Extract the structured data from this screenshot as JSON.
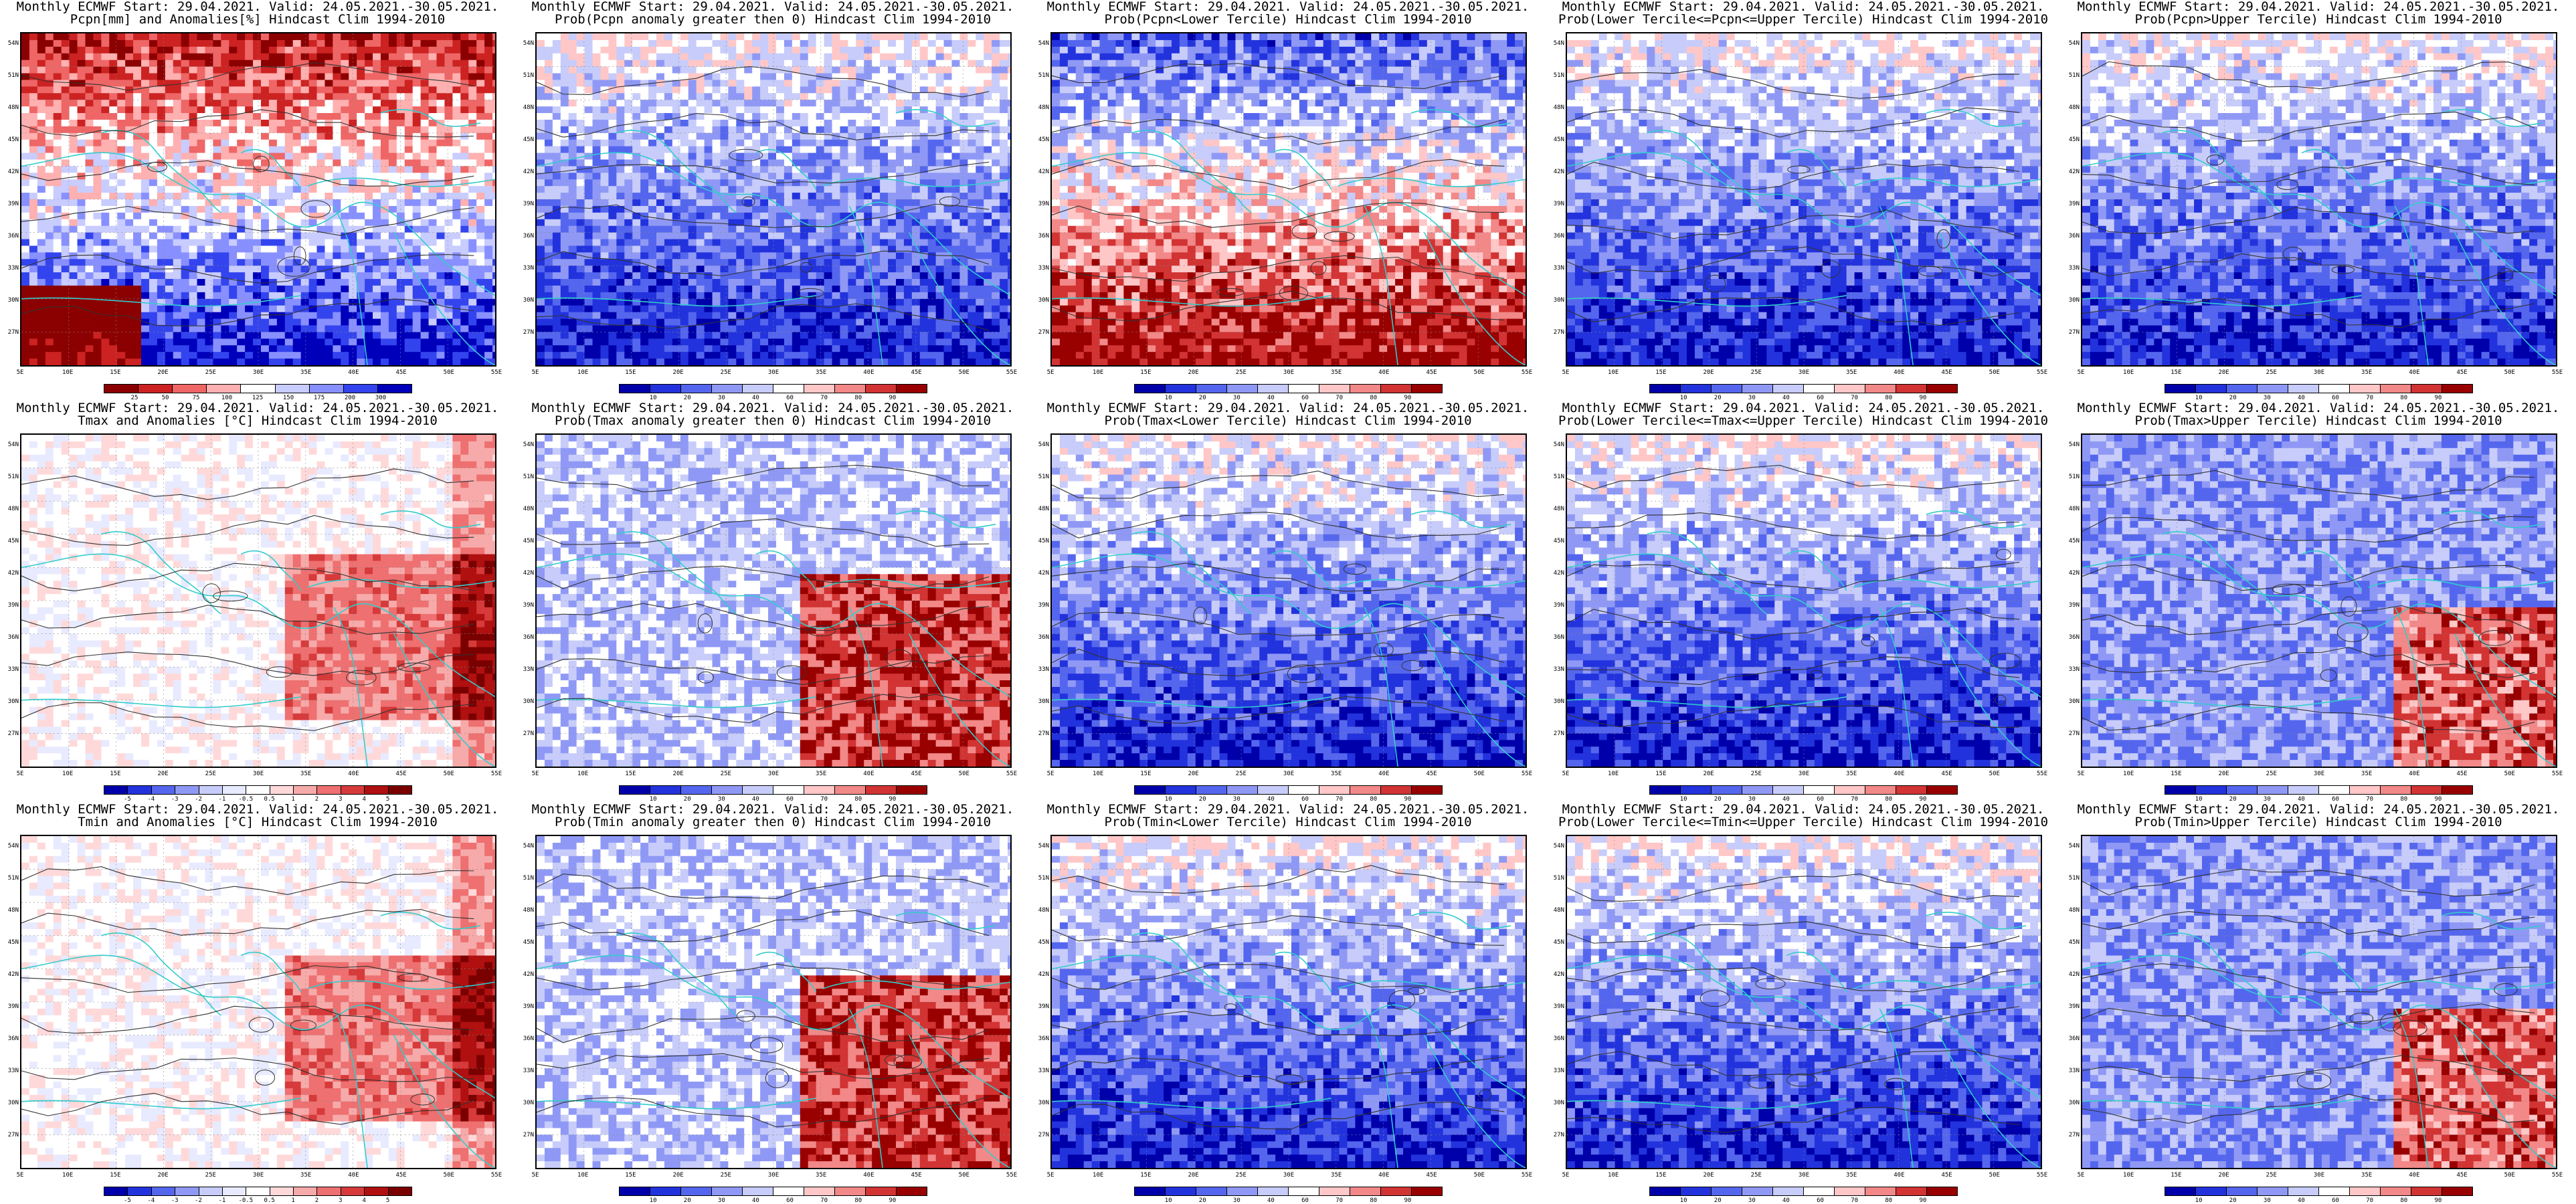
{
  "figure": {
    "panels": [
      {
        "title1": "Monthly ECMWF Start: 29.04.2021. Valid: 24.05.2021.-30.05.2021.",
        "title2": "Pcpn[mm] and Anomalies[%] Hindcast Clim 1994-2010",
        "scheme": "pcpn_anom",
        "colorbar": [
          "25",
          "50",
          "75",
          "100",
          "125",
          "150",
          "175",
          "200",
          "300"
        ]
      },
      {
        "title1": "Monthly ECMWF Start: 29.04.2021. Valid: 24.05.2021.-30.05.2021.",
        "title2": "Prob(Pcpn anomaly greater then 0) Hindcast Clim 1994-2010",
        "scheme": "prob_blue",
        "colorbar": [
          "10",
          "20",
          "30",
          "40",
          "60",
          "70",
          "80",
          "90"
        ]
      },
      {
        "title1": "Monthly ECMWF Start: 29.04.2021. Valid: 24.05.2021.-30.05.2021.",
        "title2": "Prob(Pcpn<Lower Tercile) Hindcast Clim 1994-2010",
        "scheme": "prob_red",
        "colorbar": [
          "10",
          "20",
          "30",
          "40",
          "60",
          "70",
          "80",
          "90"
        ]
      },
      {
        "title1": "Monthly ECMWF Start: 29.04.2021. Valid: 24.05.2021.-30.05.2021.",
        "title2": "Prob(Lower Tercile<=Pcpn<=Upper Tercile) Hindcast Clim 1994-2010",
        "scheme": "prob_blue",
        "colorbar": [
          "10",
          "20",
          "30",
          "40",
          "60",
          "70",
          "80",
          "90"
        ]
      },
      {
        "title1": "Monthly ECMWF Start: 29.04.2021. Valid: 24.05.2021.-30.05.2021.",
        "title2": "Prob(Pcpn>Upper Tercile) Hindcast Clim 1994-2010",
        "scheme": "prob_blue",
        "colorbar": [
          "10",
          "20",
          "30",
          "40",
          "60",
          "70",
          "80",
          "90"
        ]
      },
      {
        "title1": "Monthly ECMWF Start: 29.04.2021. Valid: 24.05.2021.-30.05.2021.",
        "title2": "Tmax and Anomalies [°C] Hindcast Clim 1994-2010",
        "scheme": "temp_anom",
        "colorbar": [
          "-5",
          "-4",
          "-3",
          "-2",
          "-1",
          "-0.5",
          "0.5",
          "1",
          "2",
          "3",
          "4",
          "5"
        ]
      },
      {
        "title1": "Monthly ECMWF Start: 29.04.2021. Valid: 24.05.2021.-30.05.2021.",
        "title2": "Prob(Tmax anomaly greater then 0) Hindcast Clim 1994-2010",
        "scheme": "prob_warm",
        "colorbar": [
          "10",
          "20",
          "30",
          "40",
          "60",
          "70",
          "80",
          "90"
        ]
      },
      {
        "title1": "Monthly ECMWF Start: 29.04.2021. Valid: 24.05.2021.-30.05.2021.",
        "title2": "Prob(Tmax<Lower Tercile) Hindcast Clim 1994-2010",
        "scheme": "prob_blue",
        "colorbar": [
          "10",
          "20",
          "30",
          "40",
          "60",
          "70",
          "80",
          "90"
        ]
      },
      {
        "title1": "Monthly ECMWF Start: 29.04.2021. Valid: 24.05.2021.-30.05.2021.",
        "title2": "Prob(Lower Tercile<=Tmax<=Upper Tercile) Hindcast Clim 1994-2010",
        "scheme": "prob_blue",
        "colorbar": [
          "10",
          "20",
          "30",
          "40",
          "60",
          "70",
          "80",
          "90"
        ]
      },
      {
        "title1": "Monthly ECMWF Start: 29.04.2021. Valid: 24.05.2021.-30.05.2021.",
        "title2": "Prob(Tmax>Upper Tercile) Hindcast Clim 1994-2010",
        "scheme": "prob_mixed",
        "colorbar": [
          "10",
          "20",
          "30",
          "40",
          "60",
          "70",
          "80",
          "90"
        ]
      },
      {
        "title1": "Monthly ECMWF Start: 29.04.2021. Valid: 24.05.2021.-30.05.2021.",
        "title2": "Tmin and Anomalies [°C] Hindcast Clim 1994-2010",
        "scheme": "temp_anom",
        "colorbar": [
          "-5",
          "-4",
          "-3",
          "-2",
          "-1",
          "-0.5",
          "0.5",
          "1",
          "2",
          "3",
          "4",
          "5"
        ]
      },
      {
        "title1": "Monthly ECMWF Start: 29.04.2021. Valid: 24.05.2021.-30.05.2021.",
        "title2": "Prob(Tmin anomaly greater then 0) Hindcast Clim 1994-2010",
        "scheme": "prob_warm",
        "colorbar": [
          "10",
          "20",
          "30",
          "40",
          "60",
          "70",
          "80",
          "90"
        ]
      },
      {
        "title1": "Monthly ECMWF Start: 29.04.2021. Valid: 24.05.2021.-30.05.2021.",
        "title2": "Prob(Tmin<Lower Tercile) Hindcast Clim 1994-2010",
        "scheme": "prob_blue",
        "colorbar": [
          "10",
          "20",
          "30",
          "40",
          "60",
          "70",
          "80",
          "90"
        ]
      },
      {
        "title1": "Monthly ECMWF Start: 29.04.2021. Valid: 24.05.2021.-30.05.2021.",
        "title2": "Prob(Lower Tercile<=Tmin<=Upper Tercile) Hindcast Clim 1994-2010",
        "scheme": "prob_blue",
        "colorbar": [
          "10",
          "20",
          "30",
          "40",
          "60",
          "70",
          "80",
          "90"
        ]
      },
      {
        "title1": "Monthly ECMWF Start: 29.04.2021. Valid: 24.05.2021.-30.05.2021.",
        "title2": "Prob(Tmin>Upper Tercile) Hindcast Clim 1994-2010",
        "scheme": "prob_mixed",
        "colorbar": [
          "10",
          "20",
          "30",
          "40",
          "60",
          "70",
          "80",
          "90"
        ]
      }
    ],
    "lat_labels": [
      "54N",
      "51N",
      "48N",
      "45N",
      "42N",
      "39N",
      "36N",
      "33N",
      "30N",
      "27N"
    ],
    "lon_labels": [
      "5E",
      "10E",
      "15E",
      "20E",
      "25E",
      "30E",
      "35E",
      "40E",
      "45E",
      "50E",
      "55E"
    ],
    "colors": {
      "coast": "#33cccc",
      "contour": "#333333",
      "frame": "#000000"
    }
  }
}
